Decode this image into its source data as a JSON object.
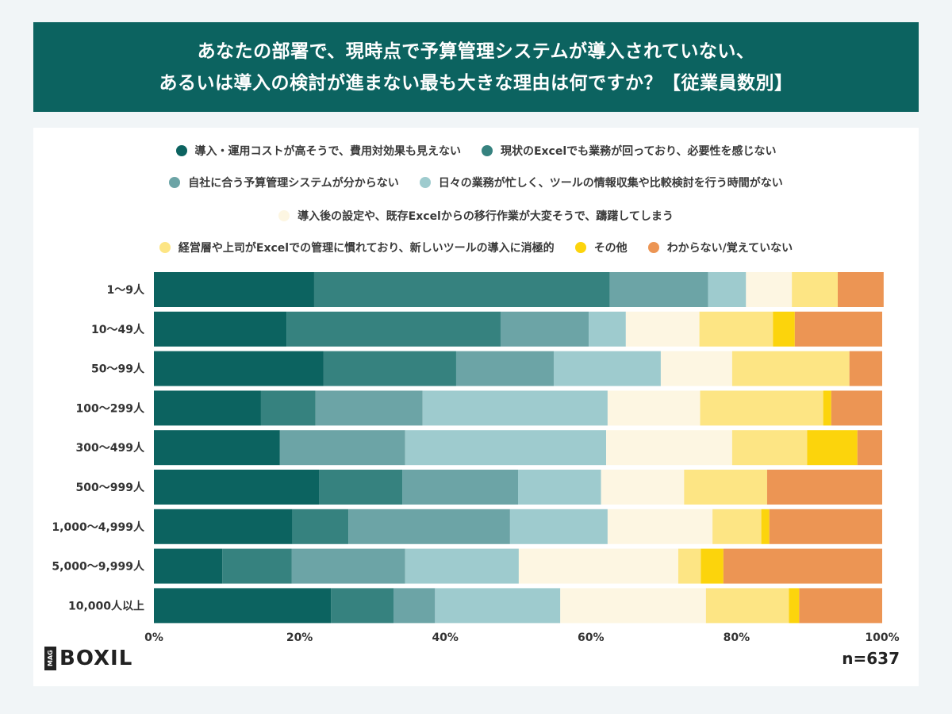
{
  "title": {
    "line1": "あなたの部署で、現時点で予算管理システムが導入されていない、",
    "line2": "あるいは導入の検討が進まない最も大きな理由は何ですか？【従業員数別】"
  },
  "logo": {
    "badge": "MAG",
    "text": "BOXIL"
  },
  "n_label": "n=637",
  "chart_data": {
    "type": "bar",
    "orientation": "horizontal-stacked-100",
    "categories": [
      "1〜9人",
      "10〜49人",
      "50〜99人",
      "100〜299人",
      "300〜499人",
      "500〜999人",
      "1,000〜4,999人",
      "5,000〜9,999人",
      "10,000人以上"
    ],
    "xlim": [
      0,
      100
    ],
    "xticks": [
      "0%",
      "20%",
      "40%",
      "60%",
      "80%",
      "100%"
    ],
    "legend_placement": "top",
    "series": [
      {
        "name": "導入・運用コストが高そうで、費用対効果も見えない",
        "color": "#0c6360",
        "values": [
          22.0,
          18.2,
          23.3,
          14.7,
          17.3,
          22.7,
          19.0,
          9.4,
          24.3
        ]
      },
      {
        "name": "現状のExcelでも業務が回っており、必要性を感じない",
        "color": "#36827f",
        "values": [
          40.6,
          29.4,
          18.2,
          7.5,
          0.0,
          11.4,
          7.7,
          9.5,
          8.6
        ]
      },
      {
        "name": "自社に合う予算管理システムが分からない",
        "color": "#6ca4a6",
        "values": [
          13.5,
          12.1,
          13.4,
          14.7,
          17.2,
          15.9,
          22.2,
          15.6,
          5.7
        ]
      },
      {
        "name": "日々の業務が忙しく、ツールの情報収集や比較検討を行う時間がない",
        "color": "#9ecbce",
        "values": [
          5.2,
          5.1,
          14.7,
          25.4,
          27.6,
          11.4,
          13.4,
          15.6,
          17.2
        ]
      },
      {
        "name": "導入後の設定や、既存Excelからの移行作業が大変そうで、躊躇してしまう",
        "color": "#fdf6e2",
        "values": [
          6.3,
          10.1,
          9.8,
          12.7,
          17.3,
          11.4,
          14.4,
          21.9,
          20.0
        ]
      },
      {
        "name": "経営層や上司がExcelでの管理に慣れており、新しいツールの導入に消極的",
        "color": "#fde584",
        "values": [
          6.3,
          10.1,
          16.1,
          16.9,
          10.3,
          11.4,
          6.7,
          3.1,
          11.4
        ]
      },
      {
        "name": "その他",
        "color": "#fcd40c",
        "values": [
          0.0,
          3.0,
          0.0,
          1.1,
          6.9,
          0.0,
          1.1,
          3.1,
          1.4
        ]
      },
      {
        "name": "わからない/覚えていない",
        "color": "#ec9554",
        "values": [
          6.3,
          12.0,
          4.5,
          7.0,
          3.4,
          15.8,
          15.5,
          21.8,
          11.4
        ]
      }
    ]
  }
}
